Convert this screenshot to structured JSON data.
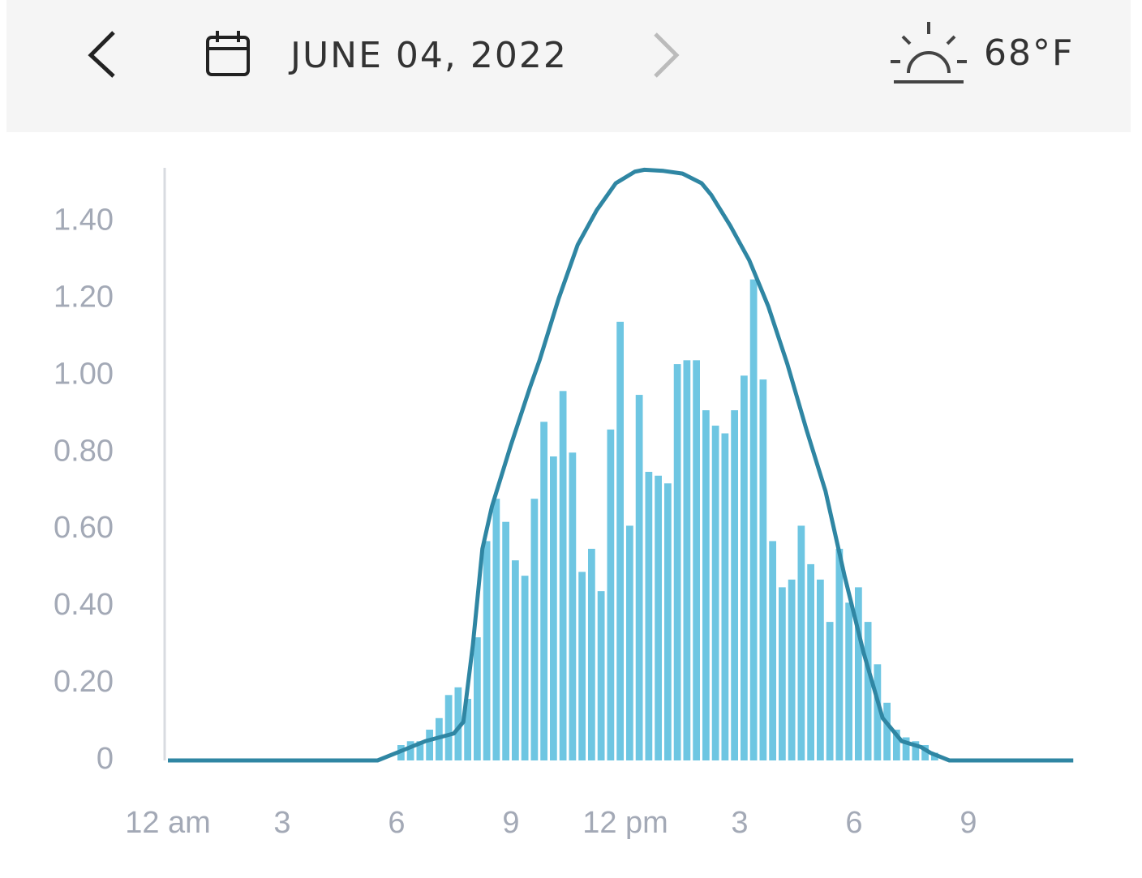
{
  "header": {
    "date": "JUNE 04, 2022",
    "temperature": "68°F"
  },
  "chart_data": {
    "type": "combo",
    "xlim": [
      0,
      24
    ],
    "xticks": [
      {
        "value": 0,
        "label": "12 am"
      },
      3,
      6,
      9,
      {
        "value": 12,
        "label": "12 pm"
      },
      {
        "value": 15,
        "label": "3"
      },
      {
        "value": 18,
        "label": "6"
      },
      {
        "value": 21,
        "label": "9"
      }
    ],
    "ylim": [
      0,
      1.54
    ],
    "yticks": [
      0,
      {
        "value": 0.2,
        "label": "0.20"
      },
      {
        "value": 0.4,
        "label": "0.40"
      },
      {
        "value": 0.6,
        "label": "0.60"
      },
      {
        "value": 0.8,
        "label": "0.80"
      },
      {
        "value": 1.0,
        "label": "1.00"
      },
      {
        "value": 1.2,
        "label": "1.20"
      },
      {
        "value": 1.4,
        "label": "1.40"
      }
    ],
    "series": [
      {
        "type": "bar",
        "color": "#6ec6e2",
        "bins": [
          6,
          6.25,
          6.5,
          6.75,
          7,
          7.25,
          7.5,
          7.75,
          8,
          8.25,
          8.5,
          8.75,
          9,
          9.25,
          9.5,
          9.75,
          10,
          10.25,
          10.5,
          10.75,
          11,
          11.25,
          11.5,
          11.75,
          12,
          12.25,
          12.5,
          12.75,
          13,
          13.25,
          13.5,
          13.75,
          14,
          14.25,
          14.5,
          14.75,
          15,
          15.25,
          15.5,
          15.75,
          16,
          16.25,
          16.5,
          16.75,
          17,
          17.25,
          17.5,
          17.75,
          18,
          18.25,
          18.5,
          18.75,
          19,
          19.25,
          19.5,
          19.75,
          20,
          20.25
        ],
        "values": [
          0.04,
          0.05,
          0.05,
          0.08,
          0.11,
          0.17,
          0.19,
          0.16,
          0.32,
          0.57,
          0.68,
          0.62,
          0.52,
          0.48,
          0.68,
          0.88,
          0.79,
          0.96,
          0.8,
          0.49,
          0.55,
          0.44,
          0.86,
          1.14,
          0.61,
          0.95,
          0.75,
          0.74,
          0.72,
          1.03,
          1.04,
          1.04,
          0.91,
          0.87,
          0.85,
          0.91,
          1.0,
          1.25,
          0.99,
          0.57,
          0.45,
          0.47,
          0.61,
          0.51,
          0.47,
          0.36,
          0.55,
          0.41,
          0.45,
          0.36,
          0.25,
          0.15,
          0.08,
          0.06,
          0.05,
          0.04,
          0.02
        ]
      },
      {
        "type": "line",
        "color": "#2f86a3",
        "x": [
          0,
          5.5,
          6,
          6.75,
          7.5,
          7.75,
          8,
          8.25,
          8.5,
          9,
          9.5,
          9.75,
          10.25,
          10.75,
          11.25,
          11.75,
          12.25,
          12.5,
          13,
          13.5,
          14,
          14.25,
          14.75,
          15.25,
          15.75,
          16.25,
          16.75,
          17.25,
          17.75,
          18.25,
          18.75,
          19.25,
          19.75,
          20,
          20.5,
          23.75
        ],
        "values": [
          0,
          0,
          0.02,
          0.05,
          0.07,
          0.1,
          0.3,
          0.55,
          0.66,
          0.82,
          0.97,
          1.04,
          1.2,
          1.34,
          1.43,
          1.5,
          1.53,
          1.535,
          1.532,
          1.525,
          1.5,
          1.47,
          1.39,
          1.3,
          1.18,
          1.03,
          0.86,
          0.7,
          0.48,
          0.28,
          0.11,
          0.05,
          0.035,
          0.02,
          0,
          0
        ]
      }
    ]
  }
}
